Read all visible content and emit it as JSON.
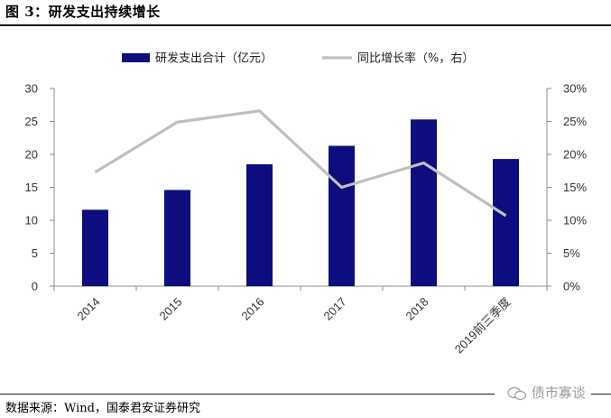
{
  "figure": {
    "title": "图 3：研发支出持续增长",
    "source": "数据来源：Wind，国泰君安证券研究",
    "watermark": "债市寡谈"
  },
  "chart_data": {
    "type": "bar",
    "categories": [
      "2014",
      "2015",
      "2016",
      "2017",
      "2018",
      "2019前三季度"
    ],
    "series": [
      {
        "name": "研发支出合计（亿元）",
        "type": "bar",
        "axis": "left",
        "values": [
          11.6,
          14.6,
          18.5,
          21.3,
          25.3,
          19.3
        ],
        "color": "#0d0d80"
      },
      {
        "name": "同比增长率（%，右）",
        "type": "line",
        "axis": "right",
        "values": [
          17.3,
          24.9,
          26.6,
          15.0,
          18.7,
          10.7
        ],
        "color": "#bfbfbf"
      }
    ],
    "y_left": {
      "ylim": [
        0,
        30
      ],
      "ticks": [
        "0",
        "5",
        "10",
        "15",
        "20",
        "25",
        "30"
      ]
    },
    "y_right": {
      "ylim": [
        0,
        30
      ],
      "ticks": [
        "0%",
        "5%",
        "10%",
        "15%",
        "20%",
        "25%",
        "30%"
      ]
    },
    "legend_placement": "top-center",
    "grid": false
  }
}
